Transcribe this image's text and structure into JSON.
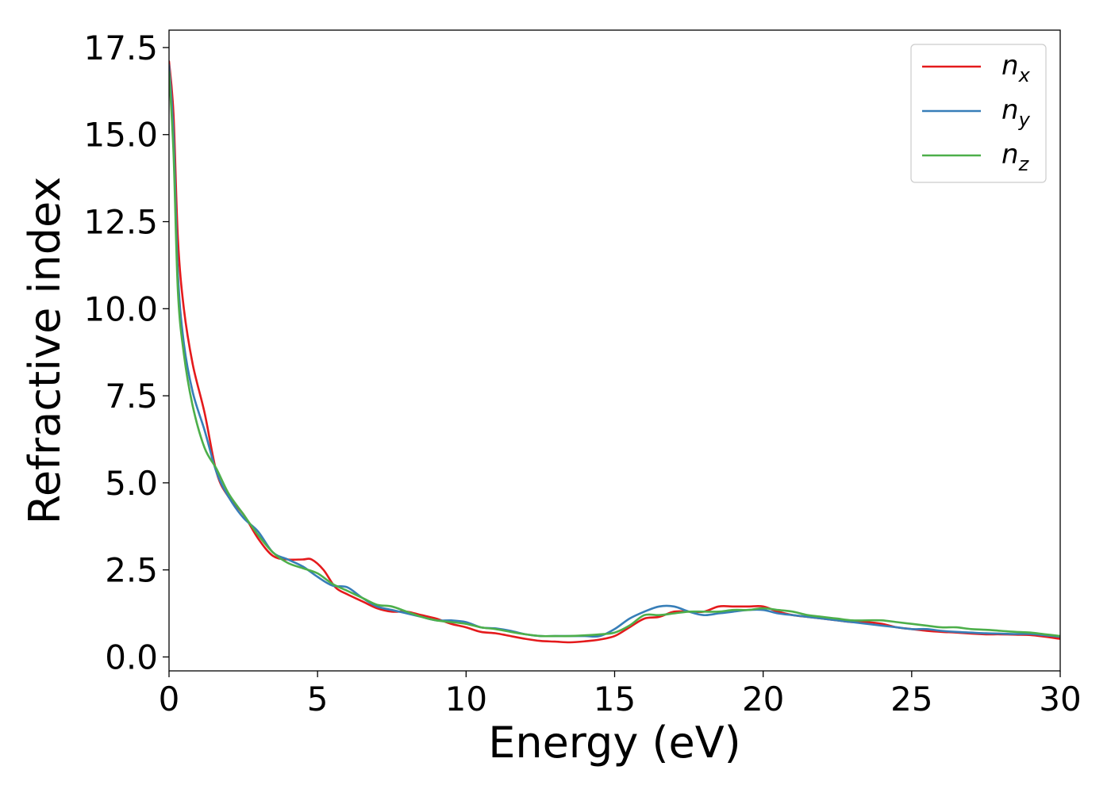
{
  "chart_data": {
    "type": "line",
    "title": "",
    "xlabel": "Energy (eV)",
    "ylabel": "Refractive index",
    "xlim": [
      0,
      30
    ],
    "ylim": [
      -0.4,
      18.0
    ],
    "xticks": [
      0,
      5,
      10,
      15,
      20,
      25,
      30
    ],
    "xtick_labels": [
      "0",
      "5",
      "10",
      "15",
      "20",
      "25",
      "30"
    ],
    "yticks": [
      0.0,
      2.5,
      5.0,
      7.5,
      10.0,
      12.5,
      15.0,
      17.5
    ],
    "ytick_labels": [
      "0.0",
      "2.5",
      "5.0",
      "7.5",
      "10.0",
      "12.5",
      "15.0",
      "17.5"
    ],
    "grid": false,
    "legend_position": "top-right",
    "series": [
      {
        "name": "n",
        "subscript": "x",
        "color": "#e41a1c",
        "x": [
          0,
          0.15,
          0.3,
          0.5,
          0.8,
          1.2,
          1.6,
          2.0,
          2.5,
          3.0,
          3.5,
          4.0,
          4.5,
          4.8,
          5.2,
          5.6,
          6.0,
          6.5,
          7.0,
          7.5,
          8.0,
          8.5,
          9.0,
          9.5,
          10.0,
          10.5,
          11.0,
          11.5,
          12.0,
          12.5,
          13.0,
          13.5,
          14.0,
          14.5,
          15.0,
          15.5,
          16.0,
          16.5,
          17.0,
          17.5,
          18.0,
          18.5,
          19.0,
          19.5,
          20.0,
          20.5,
          21.0,
          21.5,
          22.0,
          22.5,
          23.0,
          23.5,
          24.0,
          24.5,
          25.0,
          25.5,
          26.0,
          26.5,
          27.0,
          27.5,
          28.0,
          28.5,
          29.0,
          29.5,
          30.0
        ],
        "y": [
          17.1,
          15.6,
          12.0,
          10.0,
          8.4,
          7.0,
          5.3,
          4.6,
          4.1,
          3.4,
          2.9,
          2.8,
          2.8,
          2.8,
          2.5,
          2.0,
          1.8,
          1.6,
          1.4,
          1.3,
          1.3,
          1.2,
          1.1,
          0.95,
          0.85,
          0.72,
          0.68,
          0.6,
          0.52,
          0.46,
          0.44,
          0.42,
          0.45,
          0.5,
          0.6,
          0.85,
          1.1,
          1.15,
          1.3,
          1.3,
          1.3,
          1.45,
          1.45,
          1.45,
          1.45,
          1.3,
          1.2,
          1.15,
          1.1,
          1.05,
          1.0,
          1.0,
          0.95,
          0.85,
          0.8,
          0.75,
          0.72,
          0.7,
          0.67,
          0.65,
          0.65,
          0.64,
          0.63,
          0.58,
          0.52
        ]
      },
      {
        "name": "n",
        "subscript": "y",
        "color": "#377eb8",
        "x": [
          0,
          0.15,
          0.3,
          0.5,
          0.8,
          1.2,
          1.6,
          2.0,
          2.5,
          3.0,
          3.5,
          4.0,
          4.5,
          5.0,
          5.5,
          6.0,
          6.5,
          7.0,
          7.5,
          8.0,
          8.5,
          9.0,
          9.5,
          10.0,
          10.5,
          11.0,
          11.5,
          12.0,
          12.5,
          13.0,
          13.5,
          14.0,
          14.5,
          15.0,
          15.5,
          16.0,
          16.5,
          17.0,
          17.5,
          18.0,
          18.5,
          19.0,
          19.5,
          20.0,
          20.5,
          21.0,
          21.5,
          22.0,
          22.5,
          23.0,
          23.5,
          24.0,
          24.5,
          25.0,
          25.5,
          26.0,
          26.5,
          27.0,
          27.5,
          28.0,
          28.5,
          29.0,
          29.5,
          30.0
        ],
        "y": [
          17.0,
          15.0,
          11.0,
          9.0,
          7.6,
          6.5,
          5.3,
          4.6,
          4.0,
          3.6,
          3.0,
          2.8,
          2.6,
          2.3,
          2.05,
          2.0,
          1.7,
          1.45,
          1.35,
          1.25,
          1.15,
          1.05,
          1.05,
          1.0,
          0.85,
          0.82,
          0.75,
          0.65,
          0.6,
          0.6,
          0.6,
          0.6,
          0.6,
          0.8,
          1.1,
          1.3,
          1.45,
          1.45,
          1.3,
          1.2,
          1.25,
          1.3,
          1.35,
          1.35,
          1.25,
          1.2,
          1.15,
          1.1,
          1.05,
          1.0,
          0.95,
          0.9,
          0.85,
          0.8,
          0.8,
          0.75,
          0.72,
          0.7,
          0.68,
          0.67,
          0.66,
          0.66,
          0.62,
          0.58
        ]
      },
      {
        "name": "n",
        "subscript": "z",
        "color": "#4daf4a",
        "x": [
          0,
          0.15,
          0.3,
          0.5,
          0.8,
          1.2,
          1.6,
          2.0,
          2.5,
          3.0,
          3.5,
          4.0,
          4.5,
          5.0,
          5.5,
          6.0,
          6.5,
          7.0,
          7.5,
          8.0,
          8.5,
          9.0,
          9.5,
          10.0,
          10.5,
          11.0,
          11.5,
          12.0,
          12.5,
          13.0,
          13.5,
          14.0,
          14.5,
          15.0,
          15.5,
          16.0,
          16.5,
          17.0,
          17.5,
          18.0,
          18.5,
          19.0,
          19.5,
          20.0,
          20.5,
          21.0,
          21.5,
          22.0,
          22.5,
          23.0,
          23.5,
          24.0,
          24.5,
          25.0,
          25.5,
          26.0,
          26.5,
          27.0,
          27.5,
          28.0,
          28.5,
          29.0,
          29.5,
          30.0
        ],
        "y": [
          16.8,
          14.5,
          10.5,
          8.7,
          7.2,
          6.0,
          5.4,
          4.7,
          4.1,
          3.5,
          3.0,
          2.7,
          2.55,
          2.4,
          2.1,
          1.9,
          1.7,
          1.5,
          1.45,
          1.3,
          1.15,
          1.05,
          1.0,
          0.95,
          0.85,
          0.8,
          0.72,
          0.65,
          0.6,
          0.6,
          0.6,
          0.62,
          0.65,
          0.7,
          0.9,
          1.2,
          1.2,
          1.25,
          1.3,
          1.3,
          1.3,
          1.35,
          1.35,
          1.4,
          1.35,
          1.3,
          1.2,
          1.15,
          1.1,
          1.05,
          1.05,
          1.05,
          1.0,
          0.95,
          0.9,
          0.85,
          0.85,
          0.8,
          0.78,
          0.75,
          0.72,
          0.7,
          0.65,
          0.6
        ]
      }
    ]
  }
}
